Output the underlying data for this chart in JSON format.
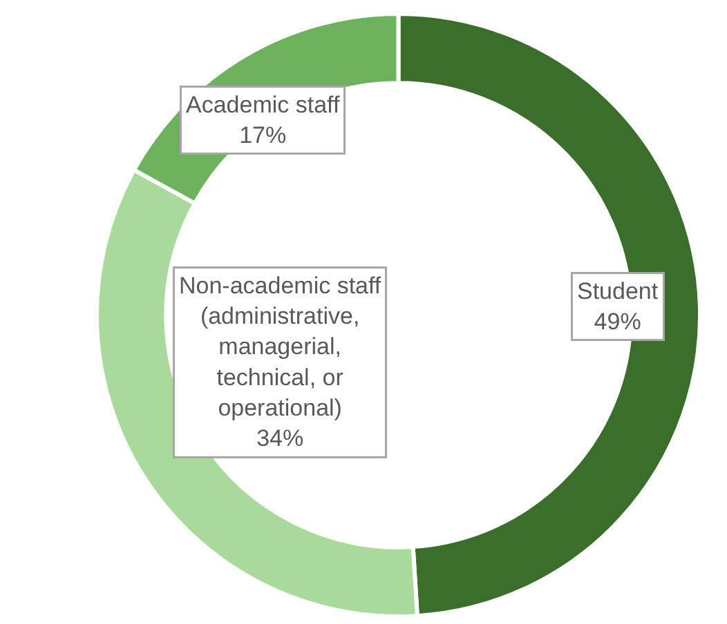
{
  "chart_data": {
    "type": "donut",
    "categories": [
      "Student",
      "Non-academic staff (administrative, managerial, technical, or operational)",
      "Academic staff"
    ],
    "values": [
      49,
      34,
      17
    ],
    "value_labels": [
      "49%",
      "34%",
      "17%"
    ],
    "colors": [
      "#3c6e2b",
      "#a9da9b",
      "#6db25c"
    ]
  }
}
